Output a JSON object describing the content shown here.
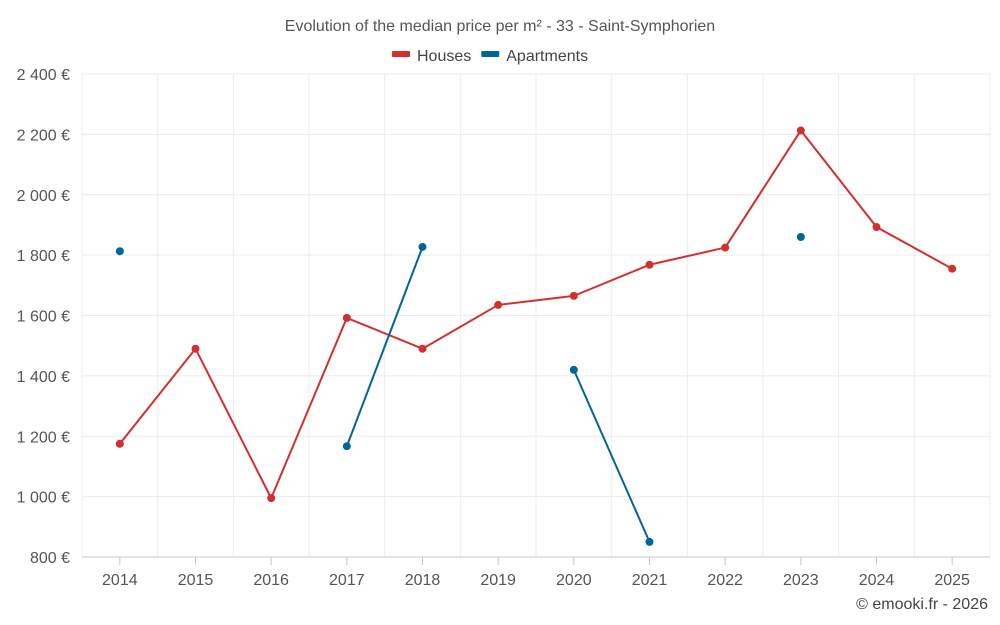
{
  "chart_data": {
    "type": "line",
    "title": "Evolution of the median price per m² - 33 - Saint-Symphorien",
    "x": [
      "2014",
      "2015",
      "2016",
      "2017",
      "2018",
      "2019",
      "2020",
      "2021",
      "2022",
      "2023",
      "2024",
      "2025"
    ],
    "ylim": [
      800,
      2400
    ],
    "yticks": [
      800,
      1000,
      1200,
      1400,
      1600,
      1800,
      2000,
      2200,
      2400
    ],
    "ytick_labels": [
      "800 €",
      "1 000 €",
      "1 200 €",
      "1 400 €",
      "1 600 €",
      "1 800 €",
      "2 000 €",
      "2 200 €",
      "2 400 €"
    ],
    "grid": true,
    "legend_position": "top-center",
    "series": [
      {
        "name": "Houses",
        "color": "#d32f2f",
        "values": [
          1175,
          1490,
          995,
          1592,
          1490,
          1635,
          1665,
          1768,
          1825,
          2213,
          1893,
          1755
        ]
      },
      {
        "name": "Apartments",
        "color": "#006699",
        "values": [
          1813,
          null,
          null,
          1167,
          1827,
          null,
          1420,
          850,
          null,
          1860,
          null,
          null
        ]
      }
    ]
  },
  "credit": "© emooki.fr - 2026"
}
